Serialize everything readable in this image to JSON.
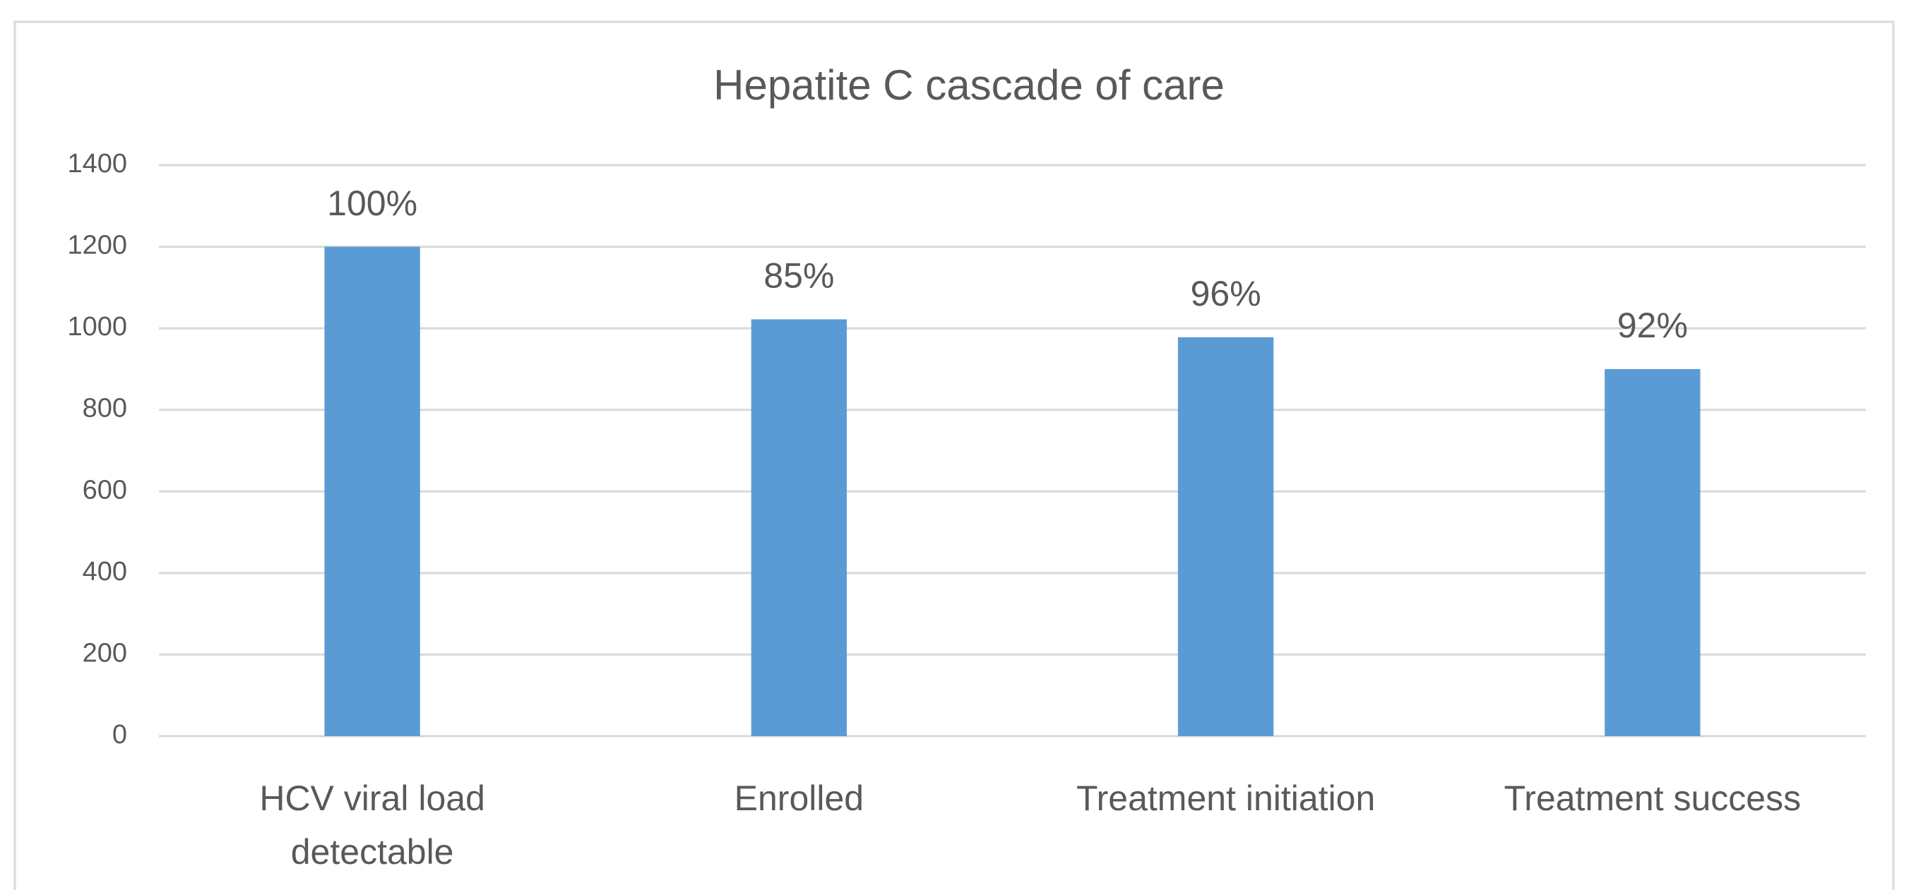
{
  "chart_data": {
    "type": "bar",
    "title": "Hepatite C cascade of care",
    "categories": [
      "HCV viral load detectable",
      "Enrolled",
      "Treatment initiation",
      "Treatment success"
    ],
    "values": [
      1200,
      1022,
      978,
      900
    ],
    "annotations": [
      "100%",
      "85%",
      "96%",
      "92%"
    ],
    "color": "#5b9bd5",
    "ylim": [
      0,
      1400
    ],
    "yticks": [
      0,
      200,
      400,
      600,
      800,
      1000,
      1200,
      1400
    ],
    "grid": true
  }
}
